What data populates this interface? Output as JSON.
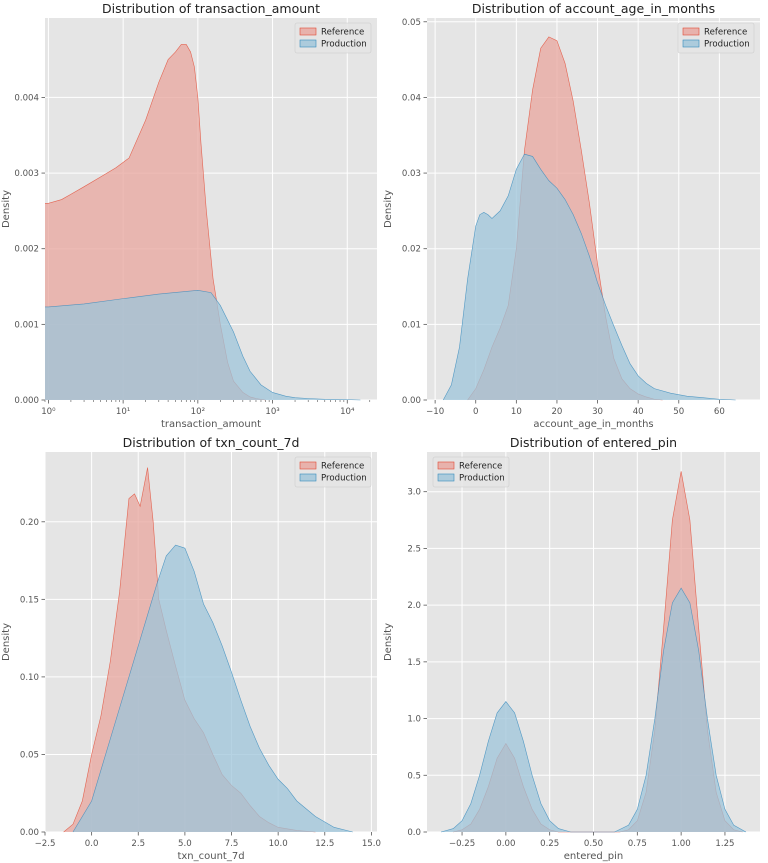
{
  "colors": {
    "panel_bg": "#E5E5E5",
    "grid": "#FFFFFF",
    "reference_fill": "#E8A59E",
    "reference_line": "#E24A33",
    "production_fill": "#9EC4DA",
    "production_line": "#348ABD"
  },
  "chart_data": [
    {
      "type": "area",
      "title": "Distribution of transaction_amount",
      "xlabel": "transaction_amount",
      "ylabel": "Density",
      "xscale": "log",
      "xlim": [
        0.9,
        25000
      ],
      "ylim": [
        0,
        0.00505
      ],
      "xticks": [
        1,
        10,
        100,
        1000,
        10000
      ],
      "xticklabels": [
        "10⁰",
        "10¹",
        "10²",
        "10³",
        "10⁴"
      ],
      "yticks": [
        0,
        0.001,
        0.002,
        0.003,
        0.004
      ],
      "yticklabels": [
        "0.000",
        "0.001",
        "0.002",
        "0.003",
        "0.004"
      ],
      "grid": true,
      "legend": {
        "position": "top-right",
        "entries": [
          "Reference",
          "Production"
        ]
      },
      "series": [
        {
          "name": "Reference",
          "x": [
            0.9,
            1,
            1.5,
            2,
            3,
            5,
            8,
            12,
            20,
            30,
            40,
            50,
            60,
            70,
            80,
            90,
            100,
            110,
            130,
            160,
            200,
            250,
            300,
            400,
            500,
            600,
            800
          ],
          "y": [
            0.0026,
            0.0026,
            0.00265,
            0.00272,
            0.00282,
            0.00295,
            0.00307,
            0.0032,
            0.0037,
            0.0042,
            0.0045,
            0.0046,
            0.0047,
            0.0047,
            0.0046,
            0.0044,
            0.004,
            0.0034,
            0.0025,
            0.0016,
            0.001,
            0.0005,
            0.00025,
            0.0001,
            4e-05,
            2e-05,
            0
          ]
        },
        {
          "name": "Production",
          "x": [
            0.9,
            1,
            3,
            10,
            30,
            100,
            150,
            200,
            300,
            400,
            500,
            700,
            1000,
            1500,
            2000,
            3000,
            5000,
            10000,
            15000
          ],
          "y": [
            0.00123,
            0.00123,
            0.00127,
            0.00134,
            0.0014,
            0.00145,
            0.00142,
            0.00125,
            0.0009,
            0.00058,
            0.00038,
            0.0002,
            0.0001,
            5e-05,
            3e-05,
            2e-05,
            1e-05,
            5e-06,
            0
          ]
        }
      ]
    },
    {
      "type": "area",
      "title": "Distribution of account_age_in_months",
      "xlabel": "account_age_in_months",
      "ylabel": "Density",
      "xlim": [
        -12,
        70
      ],
      "ylim": [
        0,
        0.0505
      ],
      "xticks": [
        -10,
        0,
        10,
        20,
        30,
        40,
        50,
        60
      ],
      "xticklabels": [
        "−10",
        "0",
        "10",
        "20",
        "30",
        "40",
        "50",
        "60"
      ],
      "yticks": [
        0,
        0.01,
        0.02,
        0.03,
        0.04,
        0.05
      ],
      "yticklabels": [
        "0.00",
        "0.01",
        "0.02",
        "0.03",
        "0.04",
        "0.05"
      ],
      "grid": true,
      "legend": {
        "position": "top-right",
        "entries": [
          "Reference",
          "Production"
        ]
      },
      "series": [
        {
          "name": "Reference",
          "x": [
            -2,
            0,
            2,
            4,
            6,
            8,
            10,
            12,
            14,
            16,
            18,
            20,
            22,
            24,
            26,
            28,
            30,
            32,
            34,
            36,
            38,
            40,
            42,
            44,
            46
          ],
          "y": [
            0,
            0.0015,
            0.004,
            0.007,
            0.0095,
            0.0125,
            0.02,
            0.033,
            0.041,
            0.0465,
            0.048,
            0.0475,
            0.0445,
            0.0395,
            0.033,
            0.026,
            0.018,
            0.011,
            0.0055,
            0.0028,
            0.0015,
            0.0008,
            0.0004,
            0.0001,
            0
          ]
        },
        {
          "name": "Production",
          "x": [
            -8,
            -6,
            -4,
            -2,
            0,
            1,
            2,
            3,
            4,
            6,
            8,
            10,
            12,
            14,
            16,
            18,
            20,
            22,
            24,
            26,
            28,
            30,
            32,
            34,
            36,
            38,
            40,
            42,
            44,
            48,
            52,
            56,
            60,
            64
          ],
          "y": [
            0,
            0.002,
            0.007,
            0.016,
            0.023,
            0.0245,
            0.0248,
            0.0245,
            0.024,
            0.025,
            0.027,
            0.0305,
            0.0325,
            0.0322,
            0.0305,
            0.029,
            0.028,
            0.0265,
            0.0245,
            0.022,
            0.019,
            0.0155,
            0.0125,
            0.0098,
            0.0072,
            0.0048,
            0.0032,
            0.0022,
            0.0015,
            0.0009,
            0.0005,
            0.0003,
            0.0001,
            0
          ]
        }
      ]
    },
    {
      "type": "area",
      "title": "Distribution of txn_count_7d",
      "xlabel": "txn_count_7d",
      "ylabel": "Density",
      "xlim": [
        -2.5,
        15.3
      ],
      "ylim": [
        0,
        0.245
      ],
      "xticks": [
        -2.5,
        0,
        2.5,
        5,
        7.5,
        10,
        12.5,
        15
      ],
      "xticklabels": [
        "−2.5",
        "0.0",
        "2.5",
        "5.0",
        "7.5",
        "10.0",
        "12.5",
        "15.0"
      ],
      "yticks": [
        0,
        0.05,
        0.1,
        0.15,
        0.2
      ],
      "yticklabels": [
        "0.00",
        "0.05",
        "0.10",
        "0.15",
        "0.20"
      ],
      "grid": true,
      "legend": {
        "position": "top-right",
        "entries": [
          "Reference",
          "Production"
        ]
      },
      "series": [
        {
          "name": "Reference",
          "x": [
            -1.5,
            -1,
            -0.5,
            0,
            0.5,
            1,
            1.5,
            2,
            2.3,
            2.6,
            3,
            3.3,
            3.6,
            4,
            4.5,
            5,
            5.5,
            6,
            6.5,
            7,
            7.5,
            8,
            8.5,
            9,
            9.5,
            10,
            11,
            12
          ],
          "y": [
            0,
            0.005,
            0.02,
            0.05,
            0.075,
            0.11,
            0.155,
            0.215,
            0.218,
            0.21,
            0.235,
            0.2,
            0.15,
            0.13,
            0.107,
            0.085,
            0.073,
            0.064,
            0.05,
            0.037,
            0.03,
            0.025,
            0.017,
            0.01,
            0.006,
            0.003,
            0.001,
            0
          ]
        },
        {
          "name": "Production",
          "x": [
            -1,
            0,
            1,
            2,
            3,
            3.5,
            4,
            4.5,
            5,
            5.5,
            6,
            6.5,
            7,
            7.5,
            8,
            8.5,
            9,
            9.5,
            10,
            10.5,
            11,
            12,
            13,
            14
          ],
          "y": [
            0,
            0.02,
            0.06,
            0.1,
            0.14,
            0.16,
            0.178,
            0.185,
            0.183,
            0.168,
            0.147,
            0.135,
            0.12,
            0.103,
            0.085,
            0.068,
            0.054,
            0.043,
            0.034,
            0.028,
            0.02,
            0.01,
            0.003,
            0
          ]
        }
      ]
    },
    {
      "type": "area",
      "title": "Distribution of entered_pin",
      "xlabel": "entered_pin",
      "ylabel": "Density",
      "xlim": [
        -0.45,
        1.45
      ],
      "ylim": [
        0,
        3.35
      ],
      "xticks": [
        -0.25,
        0,
        0.25,
        0.5,
        0.75,
        1,
        1.25
      ],
      "xticklabels": [
        "−0.25",
        "0.00",
        "0.25",
        "0.50",
        "0.75",
        "1.00",
        "1.25"
      ],
      "yticks": [
        0,
        0.5,
        1,
        1.5,
        2,
        2.5,
        3
      ],
      "yticklabels": [
        "0.0",
        "0.5",
        "1.0",
        "1.5",
        "2.0",
        "2.5",
        "3.0"
      ],
      "grid": true,
      "legend": {
        "position": "top-left",
        "entries": [
          "Reference",
          "Production"
        ]
      },
      "series": [
        {
          "name": "Reference",
          "x": [
            -0.3,
            -0.25,
            -0.2,
            -0.15,
            -0.1,
            -0.05,
            0,
            0.05,
            0.1,
            0.15,
            0.2,
            0.25,
            0.3,
            0.65,
            0.7,
            0.75,
            0.8,
            0.85,
            0.9,
            0.95,
            1,
            1.05,
            1.1,
            1.15,
            1.2,
            1.25,
            1.3,
            1.35
          ],
          "y": [
            0,
            0.02,
            0.07,
            0.2,
            0.4,
            0.65,
            0.78,
            0.65,
            0.4,
            0.2,
            0.07,
            0.02,
            0,
            0,
            0.02,
            0.1,
            0.35,
            0.9,
            1.8,
            2.75,
            3.18,
            2.75,
            1.8,
            0.9,
            0.35,
            0.1,
            0.02,
            0
          ]
        },
        {
          "name": "Production",
          "x": [
            -0.37,
            -0.3,
            -0.25,
            -0.2,
            -0.15,
            -0.1,
            -0.05,
            0,
            0.05,
            0.1,
            0.15,
            0.2,
            0.25,
            0.3,
            0.37,
            0.62,
            0.7,
            0.75,
            0.8,
            0.85,
            0.9,
            0.95,
            1,
            1.05,
            1.1,
            1.15,
            1.2,
            1.25,
            1.3,
            1.37
          ],
          "y": [
            0,
            0.03,
            0.1,
            0.25,
            0.5,
            0.8,
            1.05,
            1.15,
            1.05,
            0.8,
            0.5,
            0.25,
            0.1,
            0.03,
            0,
            0,
            0.06,
            0.2,
            0.5,
            1.0,
            1.6,
            2.02,
            2.15,
            2.02,
            1.6,
            1.0,
            0.5,
            0.2,
            0.06,
            0
          ]
        }
      ]
    }
  ]
}
